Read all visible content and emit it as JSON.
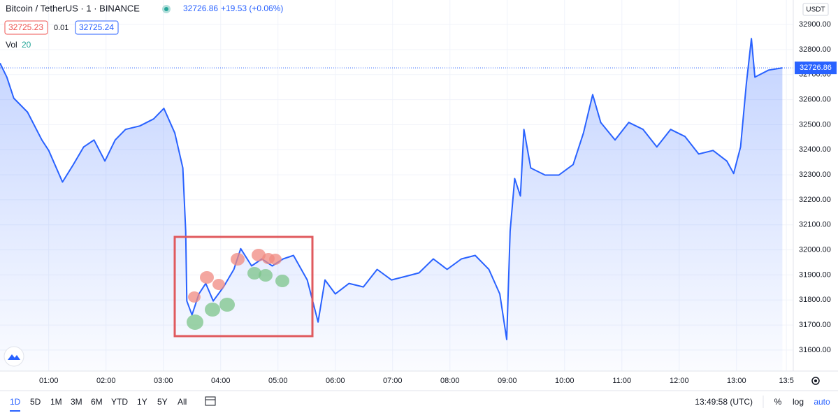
{
  "header": {
    "symbol": "Bitcoin / TetherUS · 1 · BINANCE",
    "quote": "32726.86",
    "change": "+19.53 (+0.06%)",
    "bid": "32725.23",
    "spread": "0.01",
    "ask": "32725.24",
    "vol_label": "Vol",
    "vol_value": "20"
  },
  "chart_data": {
    "type": "area",
    "x": [
      0.15,
      0.27,
      0.39,
      0.63,
      0.88,
      1.0,
      1.24,
      1.43,
      1.61,
      1.79,
      1.98,
      2.16,
      2.34,
      2.59,
      2.83,
      3.01,
      3.2,
      3.34,
      3.39,
      3.41,
      3.5,
      3.62,
      3.74,
      3.87,
      4.05,
      4.23,
      4.35,
      4.54,
      4.72,
      4.9,
      5.09,
      5.27,
      5.51,
      5.7,
      5.82,
      6.0,
      6.24,
      6.49,
      6.73,
      6.98,
      7.22,
      7.46,
      7.71,
      7.95,
      8.2,
      8.44,
      8.68,
      8.87,
      8.99,
      9.05,
      9.13,
      9.23,
      9.29,
      9.41,
      9.66,
      9.9,
      10.15,
      10.33,
      10.49,
      10.63,
      10.88,
      11.12,
      11.37,
      11.61,
      11.85,
      12.1,
      12.34,
      12.59,
      12.83,
      12.95,
      13.07,
      13.17,
      13.26,
      13.32,
      13.56,
      13.8
    ],
    "values": [
      32746,
      32690,
      32606,
      32550,
      32439,
      32397,
      32271,
      32341,
      32411,
      32439,
      32355,
      32439,
      32481,
      32495,
      32523,
      32565,
      32467,
      32327,
      32075,
      31796,
      31740,
      31824,
      31866,
      31796,
      31852,
      31922,
      32005,
      31936,
      31964,
      31936,
      31964,
      31978,
      31880,
      31712,
      31880,
      31824,
      31866,
      31852,
      31922,
      31880,
      31894,
      31908,
      31964,
      31922,
      31964,
      31978,
      31922,
      31824,
      31642,
      32075,
      32285,
      32215,
      32481,
      32327,
      32299,
      32299,
      32341,
      32467,
      32620,
      32509,
      32439,
      32509,
      32481,
      32411,
      32481,
      32453,
      32383,
      32397,
      32355,
      32305,
      32411,
      32662,
      32844,
      32690,
      32718,
      32726.86
    ],
    "color": "#2962ff",
    "xlim": [
      0.15,
      13.99
    ],
    "ylim": [
      31516,
      32998
    ],
    "xticks": [
      {
        "value": 1,
        "label": "01:00"
      },
      {
        "value": 2,
        "label": "02:00"
      },
      {
        "value": 3,
        "label": "03:00"
      },
      {
        "value": 4,
        "label": "04:00"
      },
      {
        "value": 5,
        "label": "05:00"
      },
      {
        "value": 6,
        "label": "06:00"
      },
      {
        "value": 7,
        "label": "07:00"
      },
      {
        "value": 8,
        "label": "08:00"
      },
      {
        "value": 9,
        "label": "09:00"
      },
      {
        "value": 10,
        "label": "10:00"
      },
      {
        "value": 11,
        "label": "11:00"
      },
      {
        "value": 12,
        "label": "12:00"
      },
      {
        "value": 13,
        "label": "13:00"
      },
      {
        "value": 13.87,
        "label": "13:5"
      }
    ],
    "yticks": [
      {
        "value": 31600,
        "label": "31600.00"
      },
      {
        "value": 31700,
        "label": "31700.00"
      },
      {
        "value": 31800,
        "label": "31800.00"
      },
      {
        "value": 31900,
        "label": "31900.00"
      },
      {
        "value": 32000,
        "label": "32000.00"
      },
      {
        "value": 32100,
        "label": "32100.00"
      },
      {
        "value": 32200,
        "label": "32200.00"
      },
      {
        "value": 32300,
        "label": "32300.00"
      },
      {
        "value": 32400,
        "label": "32400.00"
      },
      {
        "value": 32500,
        "label": "32500.00"
      },
      {
        "value": 32600,
        "label": "32600.00"
      },
      {
        "value": 32700,
        "label": "32700.00"
      },
      {
        "value": 32800,
        "label": "32800.00"
      },
      {
        "value": 32900,
        "label": "32900.00"
      }
    ],
    "grid": true,
    "currency": "USDT",
    "price_line": 32726.86
  },
  "toolbar": {
    "ranges": [
      "1D",
      "5D",
      "1M",
      "3M",
      "6M",
      "YTD",
      "1Y",
      "5Y",
      "All"
    ],
    "clock": "13:49:58 (UTC)",
    "options": [
      "%",
      "log",
      "auto"
    ]
  }
}
